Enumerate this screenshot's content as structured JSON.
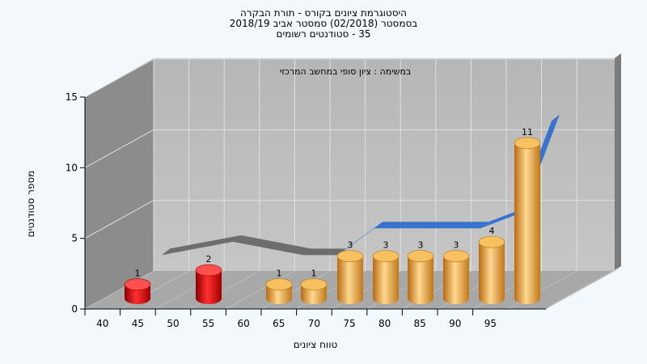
{
  "chart_data": {
    "type": "bar",
    "title_lines": [
      "היסטוגרמת ציונים בקורס - תורת הבקרה",
      "בסמסטר (02/2018) סמסטר אביב 2018/19",
      "35 - סטודנטים רשומים"
    ],
    "annotation": "במשימה : ציון סופי במחשב המרכזי",
    "xlabel": "טווח ציונים",
    "ylabel": "מספר סטודנטים",
    "x_tick_labels": [
      "40",
      "45",
      "50",
      "55",
      "60",
      "65",
      "70",
      "75",
      "80",
      "85",
      "90",
      "95"
    ],
    "y_ticks": [
      0,
      5,
      10,
      15
    ],
    "ylim": [
      0,
      15
    ],
    "categories": [
      "40-45",
      "50-55",
      "60-65",
      "65-70",
      "70-75",
      "75-80",
      "80-85",
      "85-90",
      "90-95",
      "95-100"
    ],
    "values": [
      1,
      2,
      1,
      1,
      3,
      3,
      3,
      3,
      4,
      11
    ],
    "data_labels": [
      "1",
      "2",
      "1",
      "1",
      "3",
      "3",
      "3",
      "3",
      "4",
      "11"
    ],
    "bar_colors": [
      "red",
      "red",
      "orange",
      "orange",
      "orange",
      "orange",
      "orange",
      "orange",
      "orange",
      "orange"
    ],
    "colors": {
      "red_bar": "#e01010",
      "orange_bar": "#f0a030",
      "back_wall": "#bdbdbd",
      "side_wall": "#8c8c8c",
      "floor": "#a6a6a6",
      "trend_back": "#686868",
      "trend_front": "#2f6fd0",
      "background": "#f3f8fd"
    },
    "grid": true,
    "legend": "none"
  }
}
